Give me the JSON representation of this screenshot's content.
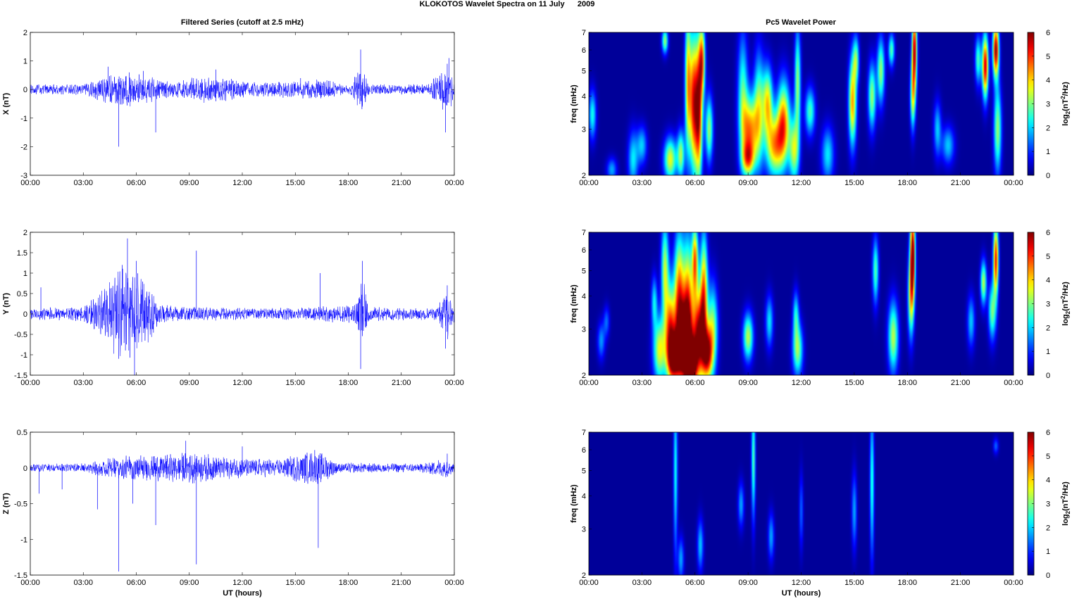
{
  "figure": {
    "suptitle": "KLOKOTOS Wavelet Spectra on 11 July      2009",
    "left_title": "Filtered Series (cutoff at 2.5 mHz)",
    "right_title": "Pc5 Wavelet Power"
  },
  "colors": {
    "series_line": "#0000ff",
    "heatmap_background": "#00008f"
  },
  "chart_data": [
    {
      "type": "line",
      "name": "X filtered series",
      "ylabel": "X (nT)",
      "xlabel": "",
      "ylim": [
        -3,
        2
      ],
      "yticks": [
        -3,
        -2,
        -1,
        0,
        1,
        2
      ],
      "xlim_hours": [
        0,
        24
      ],
      "xtick_labels": [
        "00:00",
        "03:00",
        "06:00",
        "09:00",
        "12:00",
        "15:00",
        "18:00",
        "21:00",
        "00:00"
      ],
      "baseline_amplitude": 0.12,
      "envelope": [
        [
          0,
          0.15
        ],
        [
          3,
          0.15
        ],
        [
          4.5,
          0.45
        ],
        [
          5.5,
          0.5
        ],
        [
          6.5,
          0.4
        ],
        [
          8,
          0.2
        ],
        [
          9.5,
          0.4
        ],
        [
          11,
          0.35
        ],
        [
          12.5,
          0.2
        ],
        [
          15,
          0.25
        ],
        [
          16.5,
          0.3
        ],
        [
          18,
          0.12
        ],
        [
          18.7,
          0.7
        ],
        [
          19.2,
          0.15
        ],
        [
          22.5,
          0.15
        ],
        [
          23.6,
          0.7
        ],
        [
          24,
          0.3
        ]
      ],
      "spikes": [
        [
          4.4,
          0.8
        ],
        [
          5.0,
          -2.0
        ],
        [
          5.6,
          0.6
        ],
        [
          7.1,
          -1.5
        ],
        [
          6.4,
          0.65
        ],
        [
          10.5,
          0.7
        ],
        [
          15.3,
          0.4
        ],
        [
          18.7,
          1.4
        ],
        [
          18.8,
          -0.6
        ],
        [
          23.2,
          0.35
        ],
        [
          23.5,
          -1.5
        ],
        [
          23.6,
          0.9
        ],
        [
          23.7,
          1.1
        ]
      ]
    },
    {
      "type": "line",
      "name": "Y filtered series",
      "ylabel": "Y (nT)",
      "xlabel": "",
      "ylim": [
        -1.5,
        2
      ],
      "yticks": [
        -1.5,
        -1,
        -0.5,
        0,
        0.5,
        1,
        1.5,
        2
      ],
      "xlim_hours": [
        0,
        24
      ],
      "xtick_labels": [
        "00:00",
        "03:00",
        "06:00",
        "09:00",
        "12:00",
        "15:00",
        "18:00",
        "21:00",
        "00:00"
      ],
      "baseline_amplitude": 0.1,
      "envelope": [
        [
          0,
          0.12
        ],
        [
          3,
          0.15
        ],
        [
          4.3,
          0.6
        ],
        [
          5,
          1.0
        ],
        [
          5.8,
          1.0
        ],
        [
          6.6,
          0.7
        ],
        [
          7.3,
          0.2
        ],
        [
          9,
          0.15
        ],
        [
          12,
          0.12
        ],
        [
          15,
          0.12
        ],
        [
          16.5,
          0.15
        ],
        [
          18.4,
          0.2
        ],
        [
          18.8,
          0.8
        ],
        [
          19.2,
          0.15
        ],
        [
          23,
          0.12
        ],
        [
          23.6,
          0.55
        ],
        [
          24,
          0.2
        ]
      ],
      "spikes": [
        [
          0.6,
          0.65
        ],
        [
          5.0,
          -1.1
        ],
        [
          5.2,
          1.2
        ],
        [
          5.5,
          1.85
        ],
        [
          5.9,
          -1.5
        ],
        [
          6.0,
          1.3
        ],
        [
          9.4,
          1.55
        ],
        [
          16.4,
          1.0
        ],
        [
          18.7,
          -1.35
        ],
        [
          18.8,
          1.3
        ],
        [
          23.5,
          -0.85
        ],
        [
          23.6,
          0.7
        ]
      ]
    },
    {
      "type": "line",
      "name": "Z filtered series",
      "ylabel": "Z (nT)",
      "xlabel": "UT (hours)",
      "ylim": [
        -1.5,
        0.5
      ],
      "yticks": [
        -1.5,
        -1,
        -0.5,
        0,
        0.5
      ],
      "xlim_hours": [
        0,
        24
      ],
      "xtick_labels": [
        "00:00",
        "03:00",
        "06:00",
        "09:00",
        "12:00",
        "15:00",
        "18:00",
        "21:00",
        "00:00"
      ],
      "baseline_amplitude": 0.04,
      "envelope": [
        [
          0,
          0.05
        ],
        [
          3,
          0.05
        ],
        [
          4.5,
          0.12
        ],
        [
          6,
          0.15
        ],
        [
          7.5,
          0.15
        ],
        [
          9,
          0.18
        ],
        [
          10.5,
          0.15
        ],
        [
          12,
          0.12
        ],
        [
          14,
          0.1
        ],
        [
          15.5,
          0.18
        ],
        [
          16.5,
          0.18
        ],
        [
          17.5,
          0.06
        ],
        [
          22,
          0.05
        ],
        [
          23.6,
          0.12
        ],
        [
          24,
          0.05
        ]
      ],
      "spikes": [
        [
          0.5,
          -0.36
        ],
        [
          1.8,
          -0.3
        ],
        [
          3.8,
          -0.58
        ],
        [
          5.0,
          -1.45
        ],
        [
          5.8,
          -0.5
        ],
        [
          7.1,
          -0.8
        ],
        [
          8.8,
          0.38
        ],
        [
          9.4,
          -1.35
        ],
        [
          12,
          0.3
        ],
        [
          16.3,
          -1.12
        ],
        [
          16.1,
          0.25
        ],
        [
          23.6,
          0.2
        ]
      ]
    },
    {
      "type": "heatmap",
      "name": "X wavelet power",
      "ylabel": "freq (mHz)",
      "xlabel": "",
      "yscale": "log",
      "ylim": [
        2,
        7
      ],
      "yticks": [
        2,
        3,
        4,
        5,
        6,
        7
      ],
      "xlim_hours": [
        0,
        24
      ],
      "xtick_labels": [
        "00:00",
        "03:00",
        "06:00",
        "09:00",
        "12:00",
        "15:00",
        "18:00",
        "21:00",
        "00:00"
      ],
      "colorbar": {
        "label": "log2(nT2/Hz)",
        "ticks": [
          0,
          1,
          2,
          3,
          4,
          5,
          6
        ],
        "range": [
          0,
          6
        ]
      },
      "blobs": [
        [
          0.2,
          3.4,
          0.15,
          0.5,
          2.2
        ],
        [
          1.3,
          2.1,
          0.2,
          0.15,
          1.6
        ],
        [
          2.5,
          2.3,
          0.2,
          0.4,
          2.0
        ],
        [
          3.0,
          2.6,
          0.2,
          0.3,
          1.8
        ],
        [
          4.3,
          6.5,
          0.12,
          0.5,
          3.0
        ],
        [
          4.6,
          2.3,
          0.25,
          0.3,
          3.5
        ],
        [
          5.2,
          2.4,
          0.15,
          0.35,
          3.0
        ],
        [
          5.6,
          4.5,
          0.12,
          2.0,
          3.8
        ],
        [
          5.9,
          3.8,
          0.15,
          1.6,
          4.5
        ],
        [
          6.2,
          3.5,
          0.15,
          1.5,
          5.5
        ],
        [
          6.4,
          5.5,
          0.12,
          1.2,
          4.0
        ],
        [
          6.8,
          3.0,
          0.15,
          0.6,
          3.0
        ],
        [
          8.7,
          4.0,
          0.2,
          1.5,
          2.5
        ],
        [
          9.1,
          3.0,
          0.3,
          0.6,
          4.0
        ],
        [
          9.0,
          2.3,
          0.25,
          0.25,
          3.5
        ],
        [
          9.6,
          3.5,
          0.2,
          1.2,
          3.0
        ],
        [
          10.1,
          3.8,
          0.2,
          0.8,
          3.6
        ],
        [
          10.5,
          2.6,
          0.35,
          0.5,
          4.0
        ],
        [
          11.0,
          3.2,
          0.25,
          0.8,
          4.2
        ],
        [
          11.6,
          2.5,
          0.2,
          0.5,
          3.2
        ],
        [
          11.8,
          4.5,
          0.12,
          1.5,
          3.0
        ],
        [
          12.5,
          3.5,
          0.2,
          0.5,
          2.5
        ],
        [
          13.5,
          2.4,
          0.25,
          0.4,
          2.0
        ],
        [
          14.9,
          3.8,
          0.15,
          1.0,
          4.2
        ],
        [
          15.1,
          5.5,
          0.12,
          0.8,
          2.6
        ],
        [
          16.0,
          4.0,
          0.15,
          0.8,
          3.0
        ],
        [
          16.5,
          5.0,
          0.15,
          1.0,
          3.0
        ],
        [
          17.1,
          6.0,
          0.12,
          0.6,
          2.6
        ],
        [
          18.4,
          6.0,
          0.1,
          1.5,
          5.5
        ],
        [
          18.3,
          4.0,
          0.1,
          0.8,
          3.2
        ],
        [
          19.7,
          3.0,
          0.15,
          0.5,
          1.8
        ],
        [
          20.3,
          2.6,
          0.25,
          0.3,
          1.8
        ],
        [
          22.0,
          5.5,
          0.12,
          0.8,
          2.5
        ],
        [
          22.4,
          5.2,
          0.12,
          1.0,
          5.5
        ],
        [
          23.0,
          6.0,
          0.12,
          1.0,
          5.8
        ],
        [
          23.1,
          3.0,
          0.15,
          0.8,
          3.0
        ]
      ]
    },
    {
      "type": "heatmap",
      "name": "Y wavelet power",
      "ylabel": "freq (mHz)",
      "xlabel": "",
      "yscale": "log",
      "ylim": [
        2,
        7
      ],
      "yticks": [
        2,
        3,
        4,
        5,
        6,
        7
      ],
      "xlim_hours": [
        0,
        24
      ],
      "xtick_labels": [
        "00:00",
        "03:00",
        "06:00",
        "09:00",
        "12:00",
        "15:00",
        "18:00",
        "21:00",
        "00:00"
      ],
      "colorbar": {
        "label": "log2(nT2/Hz)",
        "ticks": [
          0,
          1,
          2,
          3,
          4,
          5,
          6
        ],
        "range": [
          0,
          6
        ]
      },
      "blobs": [
        [
          0.7,
          2.7,
          0.15,
          0.3,
          1.5
        ],
        [
          1.0,
          3.2,
          0.12,
          0.3,
          1.2
        ],
        [
          3.7,
          3.8,
          0.12,
          0.6,
          2.0
        ],
        [
          4.0,
          2.5,
          0.25,
          0.5,
          3.5
        ],
        [
          4.3,
          5.0,
          0.15,
          1.5,
          3.2
        ],
        [
          4.6,
          3.0,
          0.2,
          0.8,
          4.5
        ],
        [
          4.8,
          2.3,
          0.25,
          0.35,
          5.0
        ],
        [
          5.1,
          4.0,
          0.2,
          1.5,
          4.5
        ],
        [
          5.3,
          2.6,
          0.25,
          0.6,
          5.5
        ],
        [
          5.6,
          3.2,
          0.2,
          1.5,
          5.2
        ],
        [
          5.8,
          2.2,
          0.2,
          0.3,
          5.8
        ],
        [
          6.0,
          5.5,
          0.12,
          1.2,
          4.2
        ],
        [
          6.2,
          2.8,
          0.25,
          0.8,
          5.8
        ],
        [
          6.5,
          4.2,
          0.15,
          1.5,
          4.0
        ],
        [
          6.7,
          2.4,
          0.2,
          0.4,
          4.8
        ],
        [
          7.0,
          3.0,
          0.2,
          0.8,
          3.0
        ],
        [
          9.0,
          2.8,
          0.2,
          0.4,
          3.2
        ],
        [
          10.2,
          3.2,
          0.15,
          0.5,
          2.0
        ],
        [
          11.8,
          2.5,
          0.2,
          0.4,
          3.0
        ],
        [
          11.7,
          3.4,
          0.12,
          0.5,
          2.0
        ],
        [
          16.2,
          5.0,
          0.12,
          1.0,
          2.6
        ],
        [
          17.2,
          2.8,
          0.2,
          0.6,
          3.2
        ],
        [
          18.3,
          5.8,
          0.1,
          1.5,
          6.0
        ],
        [
          18.2,
          4.0,
          0.12,
          1.0,
          3.5
        ],
        [
          21.6,
          3.2,
          0.15,
          0.5,
          1.8
        ],
        [
          22.3,
          4.5,
          0.12,
          0.6,
          3.2
        ],
        [
          23.0,
          5.5,
          0.1,
          1.2,
          5.2
        ],
        [
          22.8,
          3.5,
          0.15,
          0.6,
          2.8
        ]
      ]
    },
    {
      "type": "heatmap",
      "name": "Z wavelet power",
      "ylabel": "freq (mHz)",
      "xlabel": "UT (hours)",
      "yscale": "log",
      "ylim": [
        2,
        7
      ],
      "yticks": [
        2,
        3,
        4,
        5,
        6,
        7
      ],
      "xlim_hours": [
        0,
        24
      ],
      "xtick_labels": [
        "00:00",
        "03:00",
        "06:00",
        "09:00",
        "12:00",
        "15:00",
        "18:00",
        "21:00",
        "00:00"
      ],
      "colorbar": {
        "label": "log2(nT2/Hz)",
        "ticks": [
          0,
          1,
          2,
          3,
          4,
          5,
          6
        ],
        "range": [
          0,
          6
        ]
      },
      "blobs": [
        [
          4.9,
          5.0,
          0.08,
          2.5,
          2.2
        ],
        [
          5.2,
          2.3,
          0.12,
          0.3,
          1.6
        ],
        [
          6.3,
          2.6,
          0.12,
          0.4,
          1.8
        ],
        [
          8.6,
          3.7,
          0.12,
          0.5,
          1.6
        ],
        [
          9.3,
          5.5,
          0.08,
          2.0,
          2.6
        ],
        [
          10.3,
          2.8,
          0.12,
          0.4,
          1.6
        ],
        [
          12.0,
          3.5,
          0.08,
          0.8,
          1.2
        ],
        [
          15.0,
          3.5,
          0.1,
          0.8,
          1.6
        ],
        [
          16.0,
          4.5,
          0.08,
          2.0,
          2.4
        ],
        [
          23.0,
          6.2,
          0.1,
          0.3,
          1.2
        ]
      ]
    }
  ]
}
